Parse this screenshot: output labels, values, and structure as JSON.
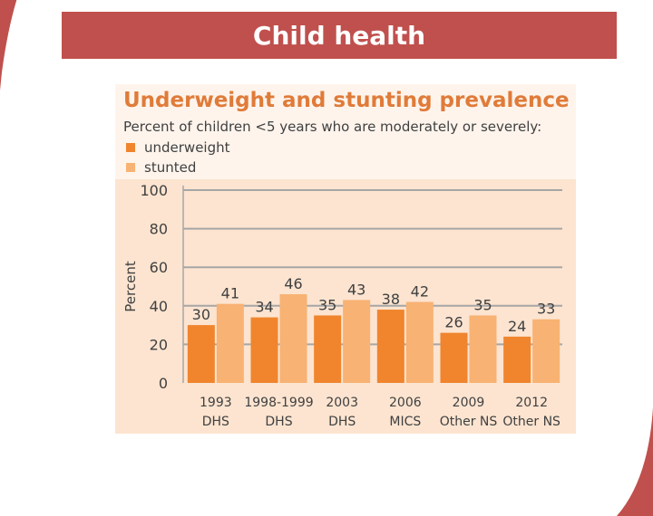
{
  "slide": {
    "title": "Child health",
    "accent_color": "#c0504d"
  },
  "chart_data": {
    "type": "bar",
    "title": "Underweight and stunting prevalence",
    "subtitle": "Percent of children <5 years who are moderately or severely:",
    "ylabel": "Percent",
    "xlabel": "",
    "ylim": [
      0,
      100
    ],
    "yticks": [
      0,
      20,
      40,
      60,
      80,
      100
    ],
    "grid": true,
    "legend_placement": "top-left",
    "categories": [
      [
        "1993",
        "DHS"
      ],
      [
        "1998-1999",
        "DHS"
      ],
      [
        "2003",
        "DHS"
      ],
      [
        "2006",
        "MICS"
      ],
      [
        "2009",
        "Other NS"
      ],
      [
        "2012",
        "Other NS"
      ]
    ],
    "series": [
      {
        "name": "underweight",
        "color": "#f0852d",
        "values": [
          30,
          34,
          35,
          38,
          26,
          24
        ]
      },
      {
        "name": "stunted",
        "color": "#f8b273",
        "values": [
          41,
          46,
          43,
          42,
          35,
          33
        ]
      }
    ],
    "colors": {
      "panel_bg": "#fce4d0",
      "header_bg": "#fef4ec",
      "title": "#e07b39",
      "grid": "#a6a6a6",
      "text": "#404040"
    }
  }
}
